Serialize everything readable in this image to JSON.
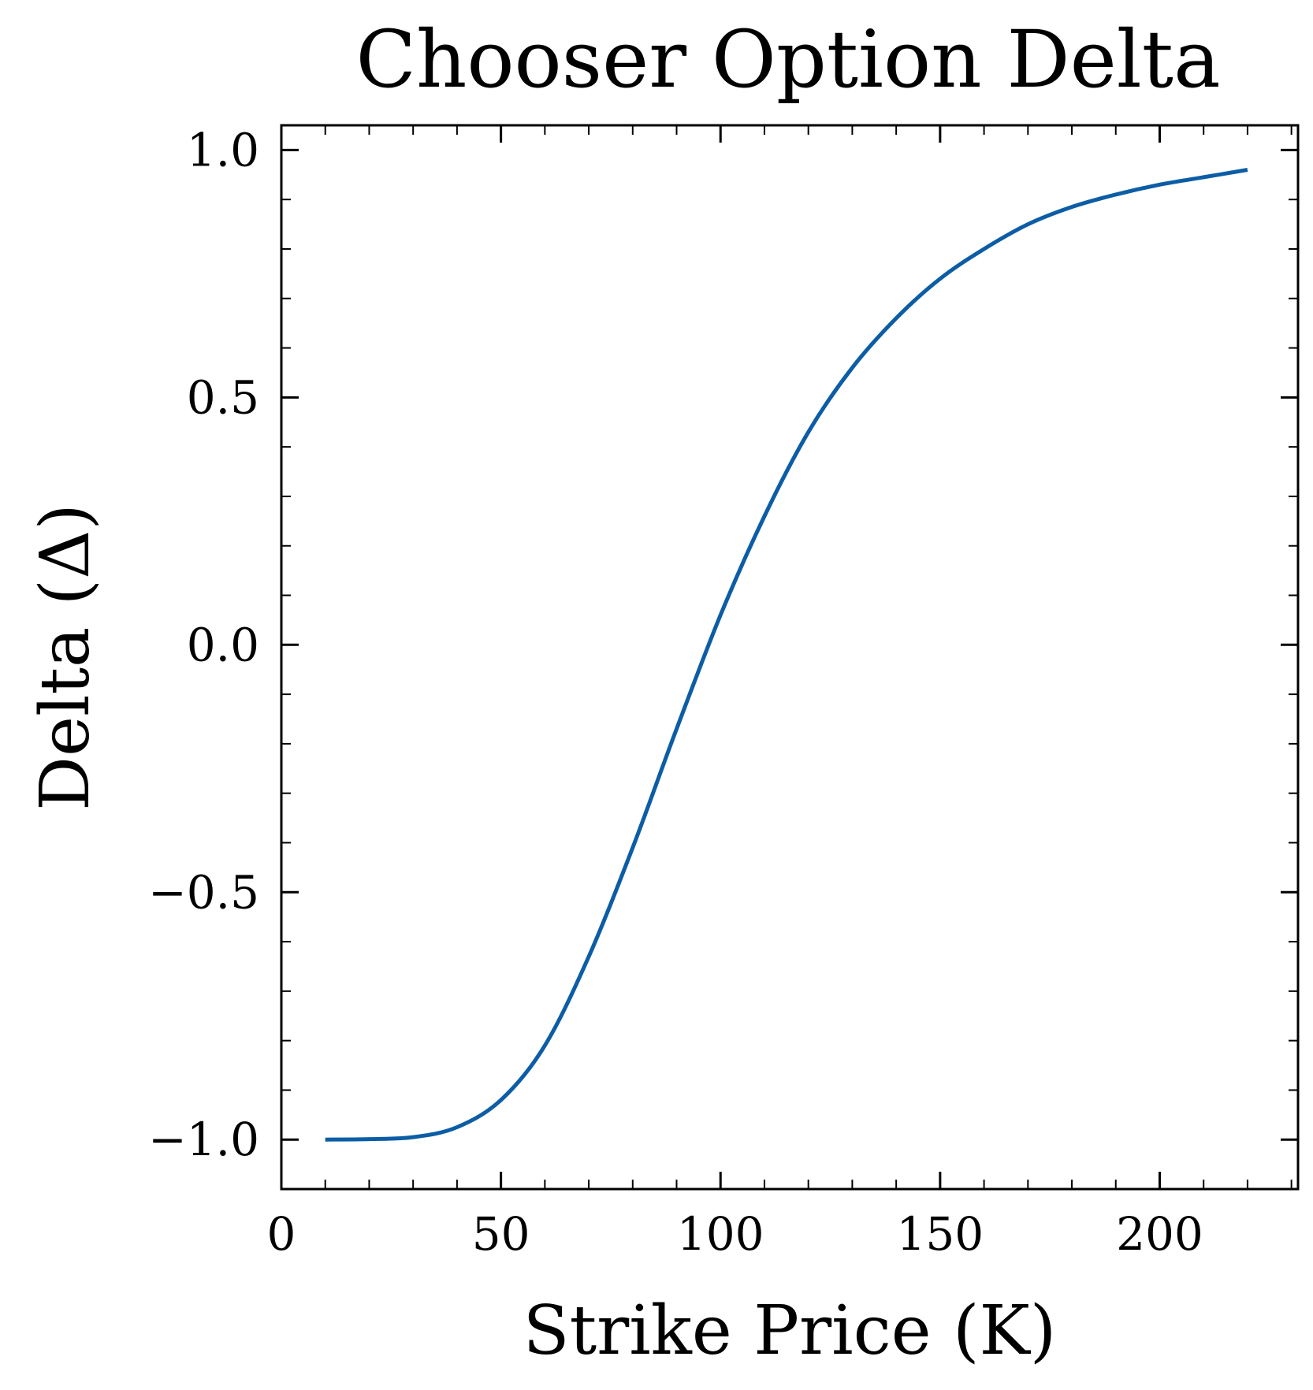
{
  "chart_data": {
    "type": "line",
    "title": "Chooser Option Delta",
    "xlabel": "Strike Price (K)",
    "ylabel": "Delta (Δ)",
    "xlim": [
      0,
      231.5
    ],
    "ylim": [
      -1.1,
      1.05
    ],
    "xticks": [
      0,
      50,
      100,
      150,
      200
    ],
    "xtick_labels": [
      "0",
      "50",
      "100",
      "150",
      "200"
    ],
    "yticks": [
      -1.0,
      -0.5,
      0.0,
      0.5,
      1.0
    ],
    "ytick_labels": [
      "−1.0",
      "−0.5",
      "0.0",
      "0.5",
      "1.0"
    ],
    "grid": false,
    "series": [
      {
        "color": "#0C5DA5",
        "x": [
          10,
          20,
          30,
          40,
          50,
          60,
          70,
          80,
          90,
          100,
          110,
          120,
          130,
          140,
          150,
          160,
          170,
          180,
          190,
          200,
          210,
          220
        ],
        "y": [
          -1.0,
          -0.999,
          -0.995,
          -0.975,
          -0.92,
          -0.81,
          -0.63,
          -0.41,
          -0.17,
          0.06,
          0.26,
          0.43,
          0.56,
          0.66,
          0.74,
          0.8,
          0.85,
          0.885,
          0.91,
          0.93,
          0.945,
          0.96
        ]
      }
    ]
  }
}
